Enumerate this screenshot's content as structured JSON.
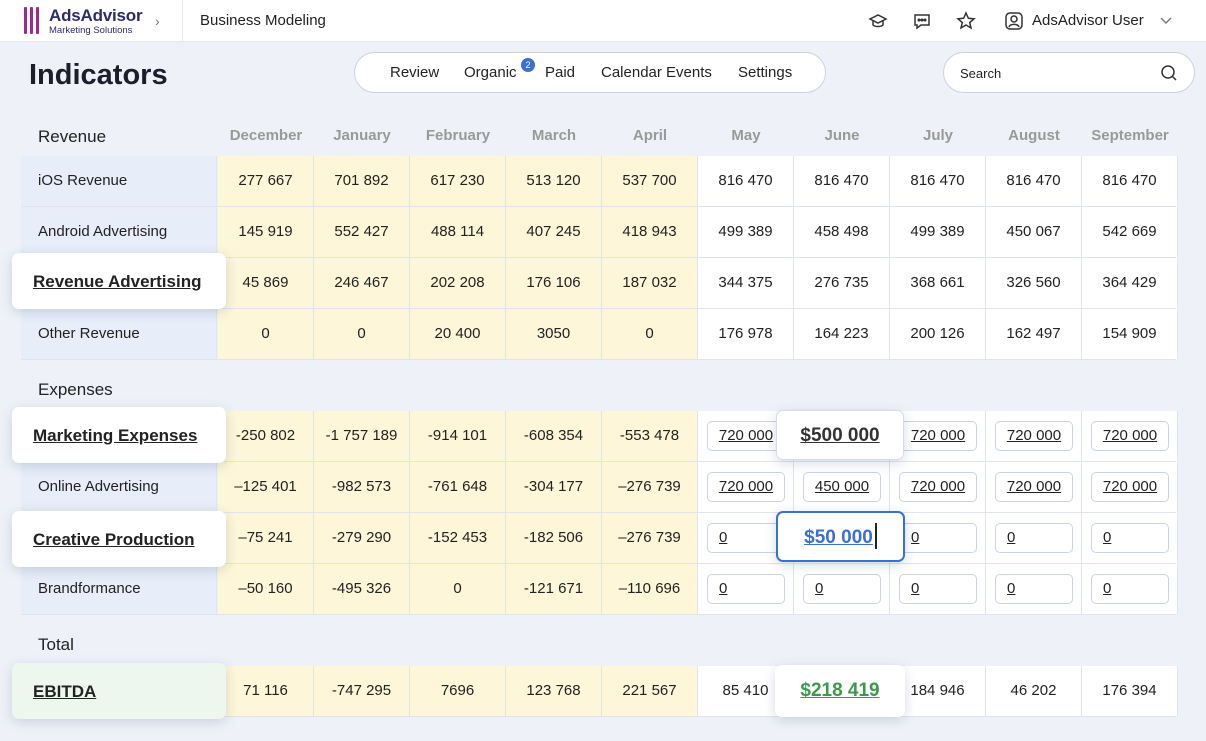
{
  "app": {
    "logo_name": "AdsAdvisor",
    "logo_sub": "Marketing Solutions",
    "breadcrumb": "Business Modeling",
    "user_name": "AdsAdvisor User"
  },
  "page_title": "Indicators",
  "tabs": [
    {
      "label": "Review"
    },
    {
      "label": "Organic",
      "badge": "2"
    },
    {
      "label": "Paid"
    },
    {
      "label": "Calendar Events"
    },
    {
      "label": "Settings"
    }
  ],
  "search": {
    "placeholder": "Search"
  },
  "months": [
    "December",
    "January",
    "February",
    "March",
    "April",
    "May",
    "June",
    "July",
    "August",
    "September"
  ],
  "sections": {
    "revenue": "Revenue",
    "expenses": "Expenses",
    "total": "Total"
  },
  "revenue_rows": [
    {
      "label": "iOS Revenue",
      "values": [
        "277 667",
        "701 892",
        "617 230",
        "513 120",
        "537 700",
        "816 470",
        "816 470",
        "816 470",
        "816 470",
        "816 470"
      ]
    },
    {
      "label": "Android Advertising",
      "values": [
        "145 919",
        "552 427",
        "488 114",
        "407 245",
        "418 943",
        "499 389",
        "458 498",
        "499 389",
        "450 067",
        "542 669"
      ]
    },
    {
      "label": "Revenue Advertising",
      "values": [
        "45 869",
        "246 467",
        "202 208",
        "176 106",
        "187 032",
        "344 375",
        "276 735",
        "368 661",
        "326 560",
        "364 429"
      ]
    },
    {
      "label": "Other Revenue",
      "values": [
        "0",
        "0",
        "20 400",
        "3050",
        "0",
        "176 978",
        "164 223",
        "200 126",
        "162 497",
        "154 909"
      ]
    }
  ],
  "expense_rows": [
    {
      "label": "Marketing Expenses",
      "values": [
        "-250 802",
        "-1 757 189",
        "-914 101",
        "-608 354",
        "-553 478",
        "720 000",
        "$500 000",
        "720 000",
        "720 000",
        "720 000"
      ]
    },
    {
      "label": "Online Advertising",
      "values": [
        "–125 401",
        "-982 573",
        "-761 648",
        "-304 177",
        "–276 739",
        "720 000",
        "450 000",
        "720 000",
        "720 000",
        "720 000"
      ]
    },
    {
      "label": "Creative Production",
      "values": [
        "–75 241",
        "-279 290",
        "-152 453",
        "-182 506",
        "–276 739",
        "0",
        "$50 000",
        "0",
        "0",
        "0"
      ]
    },
    {
      "label": "Brandformance",
      "values": [
        "–50 160",
        "-495 326",
        "0",
        "-121 671",
        "–110 696",
        "0",
        "0",
        "0",
        "0",
        "0"
      ]
    }
  ],
  "total_rows": [
    {
      "label": "EBITDA",
      "values": [
        "71 116",
        "-747 295",
        "7696",
        "123 768",
        "221 567",
        "85 410",
        "$218 419",
        "184 946",
        "46 202",
        "176 394"
      ]
    }
  ],
  "colors": {
    "accent": "#3a6fd8",
    "highlight_green": "#3a9a4a",
    "forecast_yellow": "#fdf6d8",
    "label_blue": "#e7edf9"
  }
}
